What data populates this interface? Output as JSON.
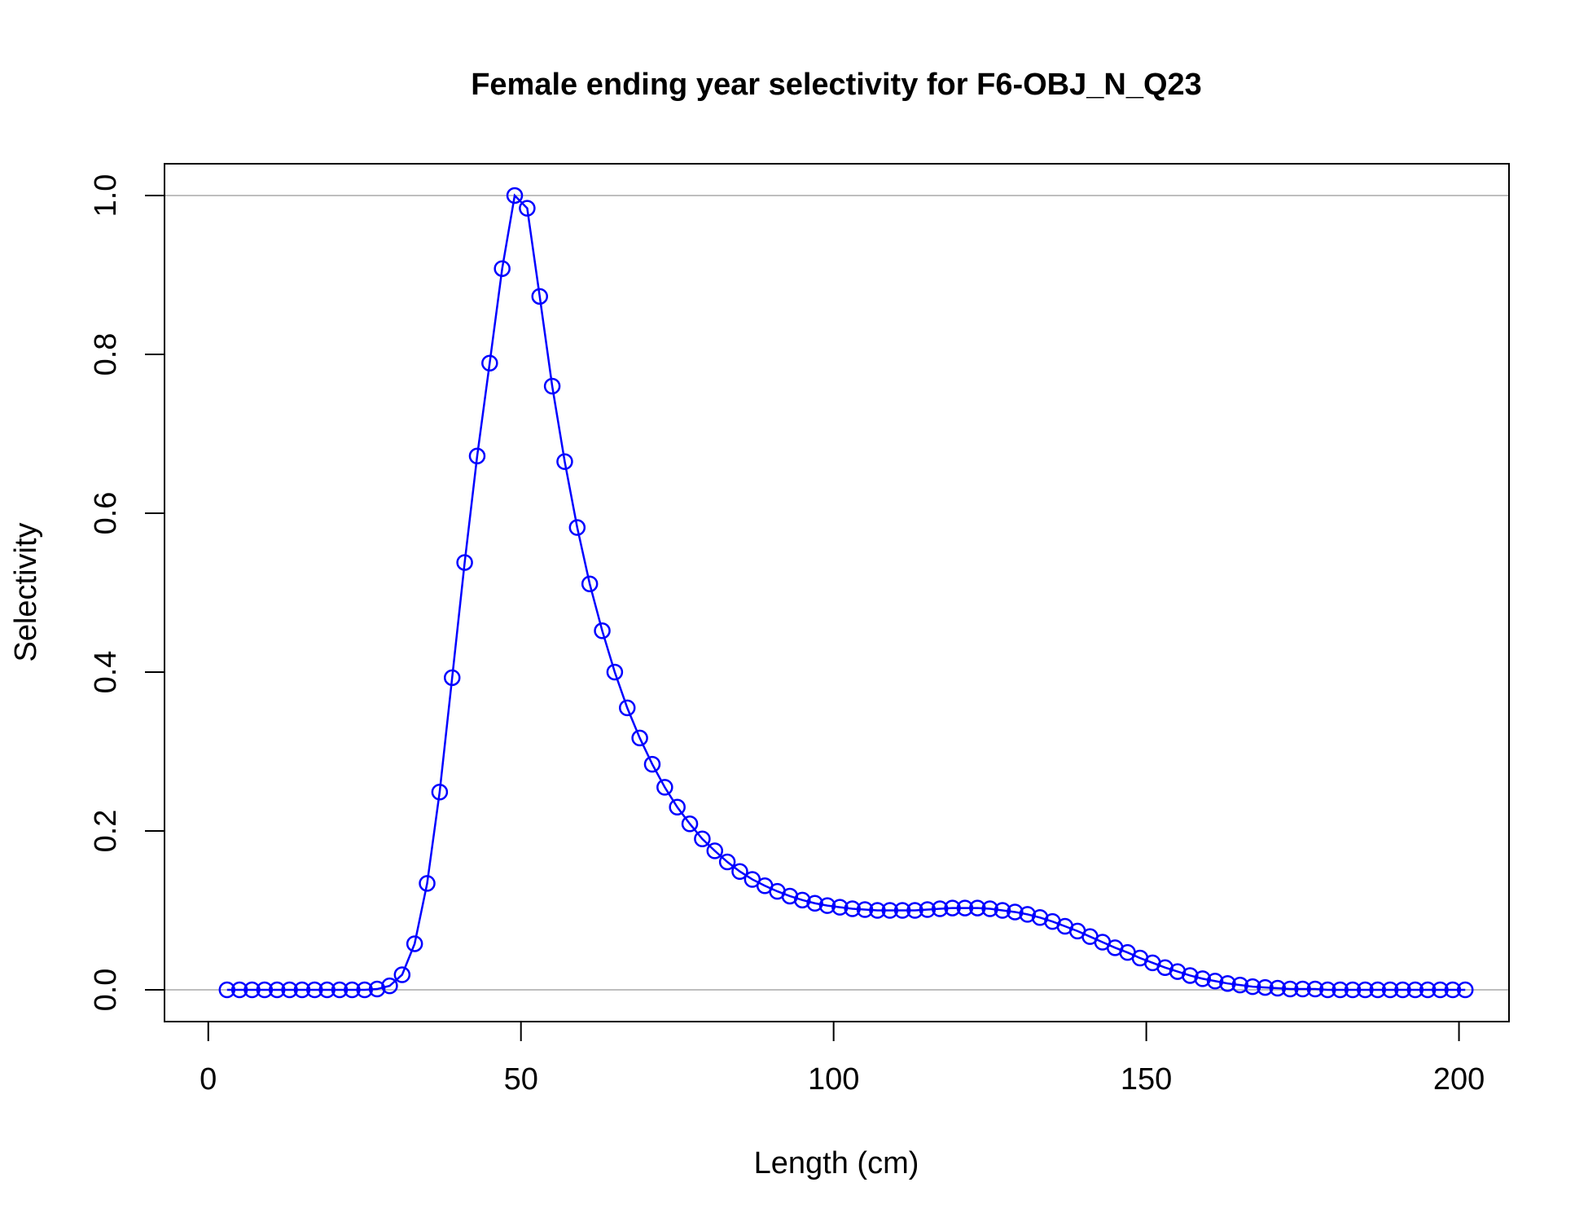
{
  "chart_data": {
    "type": "line",
    "title": "Female ending year selectivity for F6-OBJ_N_Q23",
    "xlabel": "Length (cm)",
    "ylabel": "Selectivity",
    "xlim": [
      -7,
      208
    ],
    "ylim": [
      -0.04,
      1.04
    ],
    "x_ticks": [
      0,
      50,
      100,
      150,
      200
    ],
    "x_tick_labels": [
      "0",
      "50",
      "100",
      "150",
      "200"
    ],
    "y_ticks": [
      0.0,
      0.2,
      0.4,
      0.6,
      0.8,
      1.0
    ],
    "y_tick_labels": [
      "0.0",
      "0.2",
      "0.4",
      "0.6",
      "0.8",
      "1.0"
    ],
    "reference_lines": [
      0,
      1
    ],
    "grid": false,
    "colors": {
      "series": "#0000ff",
      "reference": "#bebebe",
      "axes": "#000000"
    },
    "series": [
      {
        "marker": "open-circle",
        "x": [
          3,
          5,
          7,
          9,
          11,
          13,
          15,
          17,
          19,
          21,
          23,
          25,
          27,
          29,
          31,
          33,
          35,
          37,
          39,
          41,
          43,
          45,
          47,
          49,
          51,
          53,
          55,
          57,
          59,
          61,
          63,
          65,
          67,
          69,
          71,
          73,
          75,
          77,
          79,
          81,
          83,
          85,
          87,
          89,
          91,
          93,
          95,
          97,
          99,
          101,
          103,
          105,
          107,
          109,
          111,
          113,
          115,
          117,
          119,
          121,
          123,
          125,
          127,
          129,
          131,
          133,
          135,
          137,
          139,
          141,
          143,
          145,
          147,
          149,
          151,
          153,
          155,
          157,
          159,
          161,
          163,
          165,
          167,
          169,
          171,
          173,
          175,
          177,
          179,
          181,
          183,
          185,
          187,
          189,
          191,
          193,
          195,
          197,
          199,
          201
        ],
        "y": [
          0,
          0,
          0,
          0,
          0,
          0,
          0,
          0,
          0,
          0,
          0,
          0,
          0.001,
          0.005,
          0.019,
          0.058,
          0.134,
          0.249,
          0.393,
          0.538,
          0.672,
          0.789,
          0.908,
          1.0,
          0.984,
          0.873,
          0.76,
          0.665,
          0.582,
          0.511,
          0.452,
          0.4,
          0.355,
          0.317,
          0.284,
          0.255,
          0.23,
          0.209,
          0.19,
          0.175,
          0.161,
          0.149,
          0.139,
          0.131,
          0.124,
          0.118,
          0.113,
          0.109,
          0.106,
          0.104,
          0.102,
          0.101,
          0.1,
          0.1,
          0.1,
          0.1,
          0.101,
          0.102,
          0.103,
          0.103,
          0.103,
          0.102,
          0.1,
          0.098,
          0.095,
          0.091,
          0.086,
          0.08,
          0.074,
          0.067,
          0.06,
          0.053,
          0.047,
          0.04,
          0.034,
          0.028,
          0.023,
          0.018,
          0.014,
          0.011,
          0.008,
          0.006,
          0.004,
          0.003,
          0.002,
          0.001,
          0.001,
          0.001,
          0,
          0,
          0,
          0,
          0,
          0,
          0,
          0,
          0,
          0,
          0,
          0
        ]
      }
    ]
  }
}
